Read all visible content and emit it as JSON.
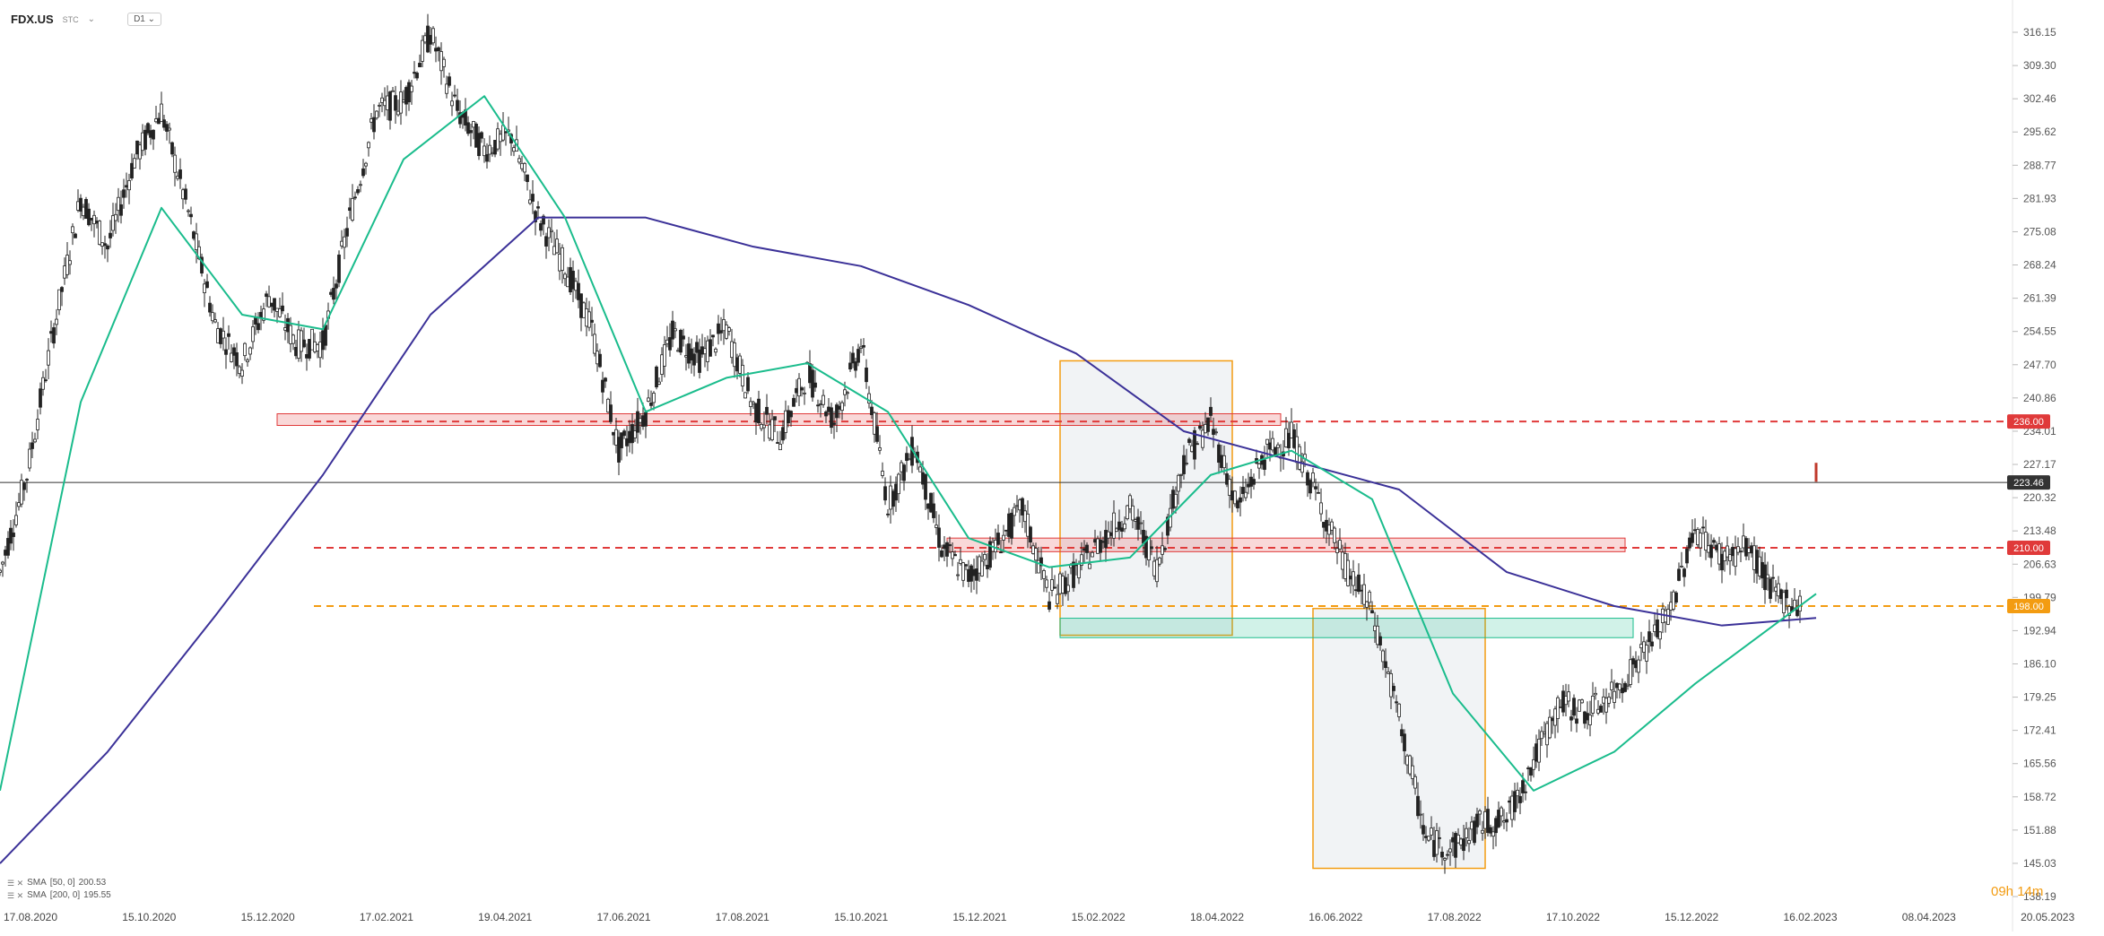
{
  "header": {
    "symbol": "FDX.US",
    "source": "STC",
    "timeframe": "D1"
  },
  "legend": [
    {
      "icon": "eye-icon",
      "label": "SMA",
      "params": "[50, 0]",
      "value": "200.53",
      "color": "#1abc8c"
    },
    {
      "icon": "eye-icon",
      "label": "SMA",
      "params": "[200, 0]",
      "value": "195.55",
      "color": "#3b3198"
    }
  ],
  "countdown": "09h 14m",
  "chart_data": {
    "type": "line",
    "y_axis": {
      "min": 138.19,
      "max": 318.0,
      "ticks": [
        "316.15",
        "309.30",
        "302.46",
        "295.62",
        "288.77",
        "281.93",
        "275.08",
        "268.24",
        "261.39",
        "254.55",
        "247.70",
        "240.86",
        "234.01",
        "227.17",
        "220.32",
        "213.48",
        "206.63",
        "199.79",
        "192.94",
        "186.10",
        "179.25",
        "172.41",
        "165.56",
        "158.72",
        "151.88",
        "145.03",
        "138.19"
      ]
    },
    "x_axis": {
      "ticks": [
        "17.08.2020",
        "15.10.2020",
        "15.12.2020",
        "17.02.2021",
        "19.04.2021",
        "17.06.2021",
        "17.08.2021",
        "15.10.2021",
        "15.12.2021",
        "15.02.2022",
        "18.04.2022",
        "16.06.2022",
        "17.08.2022",
        "17.10.2022",
        "15.12.2022",
        "16.02.2023",
        "08.04.2023",
        "20.05.2023"
      ]
    },
    "price_close_approx": {
      "x": [
        0,
        10,
        20,
        30,
        40,
        50,
        60,
        70,
        80,
        90,
        100,
        110,
        120,
        130,
        140,
        150,
        160,
        170,
        180,
        190,
        200,
        210,
        220,
        230,
        240,
        250,
        260,
        270,
        280,
        290,
        300,
        310,
        320,
        330,
        340,
        350,
        360,
        370,
        380,
        390,
        400,
        410,
        420,
        430,
        440,
        450,
        460,
        470,
        480,
        490,
        500,
        510,
        520,
        530,
        540,
        550,
        560,
        570,
        580,
        590,
        600,
        610,
        620,
        630,
        640,
        650,
        660,
        670,
        675
      ],
      "close": [
        205,
        225,
        255,
        282,
        272,
        290,
        300,
        279,
        256,
        248,
        262,
        252,
        252,
        278,
        300,
        302,
        316,
        300,
        292,
        295,
        278,
        268,
        255,
        230,
        238,
        254,
        249,
        255,
        239,
        233,
        246,
        236,
        252,
        219,
        231,
        210,
        204,
        210,
        218,
        200,
        205,
        212,
        218,
        206,
        228,
        236,
        218,
        229,
        233,
        220,
        206,
        197,
        175,
        150,
        148,
        153,
        154,
        166,
        178,
        176,
        180,
        188,
        196,
        214,
        208,
        210,
        200,
        198,
        226
      ]
    },
    "sma50_approx": {
      "x": [
        0,
        30,
        60,
        90,
        120,
        150,
        180,
        210,
        240,
        270,
        300,
        330,
        360,
        390,
        420,
        450,
        480,
        510,
        540,
        570,
        600,
        630,
        675
      ],
      "y": [
        160,
        240,
        280,
        258,
        255,
        290,
        303,
        278,
        238,
        245,
        248,
        238,
        212,
        206,
        208,
        225,
        230,
        220,
        180,
        160,
        168,
        182,
        200.53
      ]
    },
    "sma200_approx": {
      "x": [
        0,
        40,
        80,
        120,
        160,
        200,
        240,
        280,
        320,
        360,
        400,
        440,
        480,
        520,
        560,
        600,
        640,
        675
      ],
      "y": [
        145,
        168,
        196,
        225,
        258,
        278,
        278,
        272,
        268,
        260,
        250,
        234,
        228,
        222,
        205,
        198,
        194,
        195.55
      ]
    },
    "horizontal_levels": [
      {
        "value": 236.0,
        "label": "236.00",
        "color": "#e03a3a",
        "style": "dashed"
      },
      {
        "value": 210.0,
        "label": "210.00",
        "color": "#e03a3a",
        "style": "dashed"
      },
      {
        "value": 198.0,
        "label": "198.00",
        "color": "#f39c12",
        "style": "dashed"
      },
      {
        "value": 223.46,
        "label": "223.46",
        "color": "#333333",
        "style": "solid"
      }
    ],
    "zones": [
      {
        "type": "resistance",
        "from": 235.2,
        "to": 237.6,
        "x_start": 103,
        "x_end": 476,
        "color": "#e03a3a"
      },
      {
        "type": "resistance",
        "from": 209.2,
        "to": 212.0,
        "x_start": 352,
        "x_end": 604,
        "color": "#e03a3a"
      },
      {
        "type": "support",
        "from": 191.5,
        "to": 195.5,
        "x_start": 394,
        "x_end": 607,
        "color": "#1abc8c"
      }
    ],
    "boxes": [
      {
        "x_start": 394,
        "x_end": 458,
        "y_low": 192.0,
        "y_high": 248.5
      },
      {
        "x_start": 488,
        "x_end": 552,
        "y_low": 144.0,
        "y_high": 197.5
      }
    ]
  }
}
